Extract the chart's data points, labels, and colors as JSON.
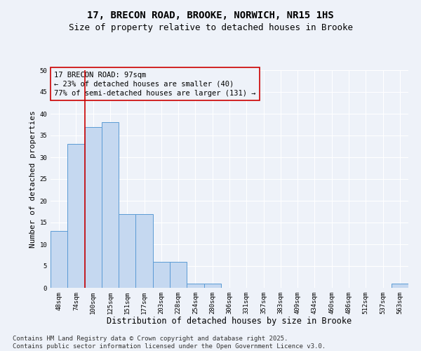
{
  "title_line1": "17, BRECON ROAD, BROOKE, NORWICH, NR15 1HS",
  "title_line2": "Size of property relative to detached houses in Brooke",
  "xlabel": "Distribution of detached houses by size in Brooke",
  "ylabel": "Number of detached properties",
  "categories": [
    "48sqm",
    "74sqm",
    "100sqm",
    "125sqm",
    "151sqm",
    "177sqm",
    "203sqm",
    "228sqm",
    "254sqm",
    "280sqm",
    "306sqm",
    "331sqm",
    "357sqm",
    "383sqm",
    "409sqm",
    "434sqm",
    "460sqm",
    "486sqm",
    "512sqm",
    "537sqm",
    "563sqm"
  ],
  "values": [
    13,
    33,
    37,
    38,
    17,
    17,
    6,
    6,
    1,
    1,
    0,
    0,
    0,
    0,
    0,
    0,
    0,
    0,
    0,
    0,
    1
  ],
  "bar_color": "#c5d8f0",
  "bar_edge_color": "#5b9bd5",
  "vline_index": 1.5,
  "vline_color": "#cc0000",
  "annotation_text": "17 BRECON ROAD: 97sqm\n← 23% of detached houses are smaller (40)\n77% of semi-detached houses are larger (131) →",
  "annotation_box_color": "#cc0000",
  "ylim": [
    0,
    50
  ],
  "yticks": [
    0,
    5,
    10,
    15,
    20,
    25,
    30,
    35,
    40,
    45,
    50
  ],
  "background_color": "#eef2f9",
  "grid_color": "#ffffff",
  "footer_text": "Contains HM Land Registry data © Crown copyright and database right 2025.\nContains public sector information licensed under the Open Government Licence v3.0.",
  "title_fontsize": 10,
  "subtitle_fontsize": 9,
  "xlabel_fontsize": 8.5,
  "ylabel_fontsize": 8,
  "tick_fontsize": 6.5,
  "annotation_fontsize": 7.5,
  "footer_fontsize": 6.5
}
